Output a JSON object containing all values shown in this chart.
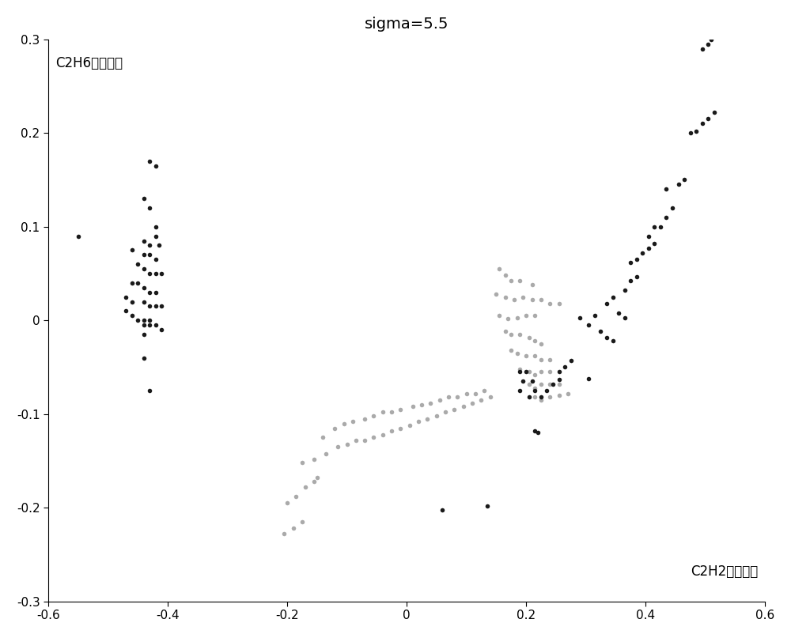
{
  "title": "sigma=5.5",
  "xlabel": "C2H2气体浓度",
  "ylabel": "C2H6气体浓度",
  "xlim": [
    -0.6,
    0.6
  ],
  "ylim": [
    -0.3,
    0.3
  ],
  "xticks": [
    -0.6,
    -0.4,
    -0.2,
    0.0,
    0.2,
    0.4,
    0.6
  ],
  "yticks": [
    -0.3,
    -0.2,
    -0.1,
    0.0,
    0.1,
    0.2,
    0.3
  ],
  "dark_points": [
    [
      -0.55,
      0.09
    ],
    [
      -0.43,
      0.17
    ],
    [
      -0.42,
      0.165
    ],
    [
      -0.44,
      0.13
    ],
    [
      -0.43,
      0.12
    ],
    [
      -0.42,
      0.1
    ],
    [
      -0.42,
      0.09
    ],
    [
      -0.44,
      0.085
    ],
    [
      -0.43,
      0.08
    ],
    [
      -0.415,
      0.08
    ],
    [
      -0.46,
      0.075
    ],
    [
      -0.44,
      0.07
    ],
    [
      -0.43,
      0.07
    ],
    [
      -0.42,
      0.065
    ],
    [
      -0.45,
      0.06
    ],
    [
      -0.44,
      0.055
    ],
    [
      -0.43,
      0.05
    ],
    [
      -0.42,
      0.05
    ],
    [
      -0.41,
      0.05
    ],
    [
      -0.46,
      0.04
    ],
    [
      -0.45,
      0.04
    ],
    [
      -0.44,
      0.035
    ],
    [
      -0.43,
      0.03
    ],
    [
      -0.42,
      0.03
    ],
    [
      -0.47,
      0.025
    ],
    [
      -0.46,
      0.02
    ],
    [
      -0.44,
      0.02
    ],
    [
      -0.43,
      0.015
    ],
    [
      -0.42,
      0.015
    ],
    [
      -0.41,
      0.015
    ],
    [
      -0.47,
      0.01
    ],
    [
      -0.46,
      0.005
    ],
    [
      -0.45,
      0.0
    ],
    [
      -0.44,
      0.0
    ],
    [
      -0.43,
      0.0
    ],
    [
      -0.44,
      -0.005
    ],
    [
      -0.43,
      -0.005
    ],
    [
      -0.42,
      -0.005
    ],
    [
      -0.41,
      -0.01
    ],
    [
      -0.44,
      -0.015
    ],
    [
      -0.44,
      -0.04
    ],
    [
      -0.43,
      -0.075
    ],
    [
      0.06,
      -0.202
    ],
    [
      0.135,
      -0.198
    ],
    [
      0.19,
      -0.055
    ],
    [
      0.195,
      -0.065
    ],
    [
      0.2,
      -0.055
    ],
    [
      0.21,
      -0.065
    ],
    [
      0.19,
      -0.075
    ],
    [
      0.215,
      -0.075
    ],
    [
      0.205,
      -0.082
    ],
    [
      0.22,
      -0.12
    ],
    [
      0.215,
      -0.118
    ],
    [
      0.235,
      -0.075
    ],
    [
      0.245,
      -0.068
    ],
    [
      0.255,
      -0.063
    ],
    [
      0.225,
      -0.082
    ],
    [
      0.255,
      -0.055
    ],
    [
      0.265,
      -0.05
    ],
    [
      0.275,
      -0.043
    ],
    [
      0.305,
      -0.062
    ],
    [
      0.29,
      0.003
    ],
    [
      0.305,
      -0.005
    ],
    [
      0.315,
      0.005
    ],
    [
      0.325,
      -0.012
    ],
    [
      0.335,
      -0.018
    ],
    [
      0.345,
      -0.022
    ],
    [
      0.355,
      0.008
    ],
    [
      0.365,
      0.003
    ],
    [
      0.335,
      0.018
    ],
    [
      0.345,
      0.025
    ],
    [
      0.365,
      0.032
    ],
    [
      0.375,
      0.042
    ],
    [
      0.385,
      0.047
    ],
    [
      0.375,
      0.062
    ],
    [
      0.385,
      0.065
    ],
    [
      0.395,
      0.072
    ],
    [
      0.405,
      0.077
    ],
    [
      0.415,
      0.082
    ],
    [
      0.405,
      0.09
    ],
    [
      0.415,
      0.1
    ],
    [
      0.425,
      0.1
    ],
    [
      0.435,
      0.11
    ],
    [
      0.445,
      0.12
    ],
    [
      0.435,
      0.14
    ],
    [
      0.455,
      0.145
    ],
    [
      0.465,
      0.15
    ],
    [
      0.475,
      0.2
    ],
    [
      0.485,
      0.202
    ],
    [
      0.495,
      0.21
    ],
    [
      0.505,
      0.215
    ],
    [
      0.515,
      0.222
    ],
    [
      0.495,
      0.29
    ],
    [
      0.505,
      0.295
    ],
    [
      0.51,
      0.3
    ]
  ],
  "light_points": [
    [
      0.155,
      0.055
    ],
    [
      0.165,
      0.048
    ],
    [
      0.175,
      0.042
    ],
    [
      0.19,
      0.042
    ],
    [
      0.21,
      0.038
    ],
    [
      0.15,
      0.028
    ],
    [
      0.165,
      0.025
    ],
    [
      0.18,
      0.022
    ],
    [
      0.195,
      0.025
    ],
    [
      0.21,
      0.022
    ],
    [
      0.225,
      0.022
    ],
    [
      0.24,
      0.018
    ],
    [
      0.255,
      0.018
    ],
    [
      0.155,
      0.005
    ],
    [
      0.17,
      0.002
    ],
    [
      0.185,
      0.003
    ],
    [
      0.2,
      0.005
    ],
    [
      0.215,
      0.005
    ],
    [
      0.165,
      -0.012
    ],
    [
      0.175,
      -0.015
    ],
    [
      0.19,
      -0.015
    ],
    [
      0.205,
      -0.018
    ],
    [
      0.215,
      -0.022
    ],
    [
      0.225,
      -0.025
    ],
    [
      0.175,
      -0.032
    ],
    [
      0.185,
      -0.035
    ],
    [
      0.2,
      -0.038
    ],
    [
      0.215,
      -0.038
    ],
    [
      0.225,
      -0.042
    ],
    [
      0.24,
      -0.042
    ],
    [
      0.19,
      -0.052
    ],
    [
      0.205,
      -0.055
    ],
    [
      0.215,
      -0.058
    ],
    [
      0.225,
      -0.055
    ],
    [
      0.24,
      -0.055
    ],
    [
      0.205,
      -0.068
    ],
    [
      0.215,
      -0.072
    ],
    [
      0.225,
      -0.068
    ],
    [
      0.24,
      -0.068
    ],
    [
      0.255,
      -0.068
    ],
    [
      0.215,
      -0.082
    ],
    [
      0.225,
      -0.085
    ],
    [
      0.24,
      -0.082
    ],
    [
      0.255,
      -0.08
    ],
    [
      0.27,
      -0.078
    ],
    [
      -0.14,
      -0.125
    ],
    [
      -0.12,
      -0.115
    ],
    [
      -0.105,
      -0.11
    ],
    [
      -0.09,
      -0.108
    ],
    [
      -0.07,
      -0.105
    ],
    [
      -0.055,
      -0.102
    ],
    [
      -0.04,
      -0.098
    ],
    [
      -0.025,
      -0.098
    ],
    [
      -0.01,
      -0.095
    ],
    [
      0.01,
      -0.092
    ],
    [
      0.025,
      -0.09
    ],
    [
      0.04,
      -0.088
    ],
    [
      0.055,
      -0.085
    ],
    [
      0.07,
      -0.082
    ],
    [
      0.085,
      -0.082
    ],
    [
      0.1,
      -0.078
    ],
    [
      0.115,
      -0.078
    ],
    [
      0.13,
      -0.075
    ],
    [
      -0.175,
      -0.152
    ],
    [
      -0.155,
      -0.148
    ],
    [
      -0.135,
      -0.142
    ],
    [
      -0.115,
      -0.135
    ],
    [
      -0.1,
      -0.132
    ],
    [
      -0.085,
      -0.128
    ],
    [
      -0.07,
      -0.128
    ],
    [
      -0.055,
      -0.125
    ],
    [
      -0.04,
      -0.122
    ],
    [
      -0.025,
      -0.118
    ],
    [
      -0.01,
      -0.115
    ],
    [
      0.005,
      -0.112
    ],
    [
      0.02,
      -0.108
    ],
    [
      0.035,
      -0.105
    ],
    [
      0.05,
      -0.102
    ],
    [
      0.065,
      -0.098
    ],
    [
      0.08,
      -0.095
    ],
    [
      0.095,
      -0.092
    ],
    [
      0.11,
      -0.088
    ],
    [
      0.125,
      -0.085
    ],
    [
      0.14,
      -0.082
    ],
    [
      -0.2,
      -0.195
    ],
    [
      -0.185,
      -0.188
    ],
    [
      -0.17,
      -0.178
    ],
    [
      -0.155,
      -0.172
    ],
    [
      -0.15,
      -0.168
    ],
    [
      -0.205,
      -0.228
    ],
    [
      -0.19,
      -0.222
    ],
    [
      -0.175,
      -0.215
    ]
  ],
  "dark_color": "#1a1a1a",
  "light_color": "#aaaaaa",
  "marker_size": 4,
  "title_fontsize": 14,
  "label_fontsize": 12
}
